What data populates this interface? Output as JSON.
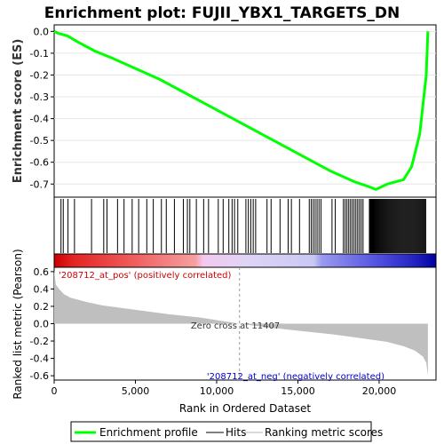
{
  "title": "Enrichment plot: FUJII_YBX1_TARGETS_DN",
  "legend": {
    "items": [
      {
        "label": "Enrichment profile",
        "color": "#00ff00"
      },
      {
        "label": "Hits",
        "color": "#808080"
      },
      {
        "label": "Ranking metric scores",
        "color": "#d9d9d9"
      }
    ]
  },
  "annotations": {
    "pos_label": "'208712_at_pos' (positively correlated)",
    "neg_label": "'208712_at_neg' (negatively correlated)",
    "zero_cross": "Zero cross at 11407"
  },
  "colors": {
    "profile": "#00ff00",
    "pos_text": "#cc0000",
    "neg_text": "#0000cc",
    "metric_fill": "#bfbfbf"
  },
  "chart_data": [
    {
      "type": "line",
      "name": "enrichment-profile",
      "ylabel": "Enrichment score (ES)",
      "ylim": [
        -0.76,
        0.03
      ],
      "xlim": [
        0,
        23500
      ],
      "yticks": [
        0.0,
        -0.1,
        -0.2,
        -0.3,
        -0.4,
        -0.5,
        -0.6,
        -0.7
      ],
      "ytick_labels": [
        "0.0",
        "-0.1",
        "-0.2",
        "-0.3",
        "-0.4",
        "-0.5",
        "-0.6",
        "-0.7"
      ],
      "grid": true,
      "x": [
        0,
        300,
        800,
        1500,
        2500,
        3500,
        5000,
        6500,
        8000,
        9500,
        11000,
        12500,
        14000,
        15500,
        17000,
        18500,
        19300,
        19800,
        20500,
        21500,
        22000,
        22500,
        22750,
        22900,
        23000
      ],
      "y": [
        0.0,
        -0.01,
        -0.02,
        -0.05,
        -0.09,
        -0.12,
        -0.17,
        -0.22,
        -0.28,
        -0.34,
        -0.4,
        -0.46,
        -0.52,
        -0.58,
        -0.64,
        -0.69,
        -0.71,
        -0.725,
        -0.7,
        -0.68,
        -0.62,
        -0.47,
        -0.3,
        -0.2,
        0.0
      ]
    },
    {
      "type": "area",
      "name": "ranked-metric",
      "xlabel": "Rank in Ordered Dataset",
      "ylabel": "Ranked list metric (Pearson)",
      "ylim": [
        -0.65,
        0.65
      ],
      "xlim": [
        0,
        23500
      ],
      "yticks": [
        0.6,
        0.4,
        0.2,
        0.0,
        -0.2,
        -0.4,
        -0.6
      ],
      "ytick_labels": [
        "0.6",
        "0.4",
        "0.2",
        "0.0",
        "-0.2",
        "-0.4",
        "-0.6"
      ],
      "xticks": [
        0,
        5000,
        10000,
        15000,
        20000
      ],
      "xtick_labels": [
        "0",
        "5,000",
        "10,000",
        "15,000",
        "20,000"
      ],
      "zero_cross": 11407,
      "x": [
        0,
        100,
        300,
        600,
        1000,
        2000,
        3000,
        5000,
        7000,
        9000,
        11407,
        13000,
        15000,
        17000,
        19000,
        20500,
        21500,
        22200,
        22700,
        22900,
        23000
      ],
      "y": [
        0.62,
        0.45,
        0.4,
        0.34,
        0.3,
        0.25,
        0.21,
        0.16,
        0.11,
        0.07,
        0.0,
        -0.04,
        -0.08,
        -0.12,
        -0.17,
        -0.21,
        -0.26,
        -0.31,
        -0.38,
        -0.45,
        -0.6
      ]
    }
  ]
}
